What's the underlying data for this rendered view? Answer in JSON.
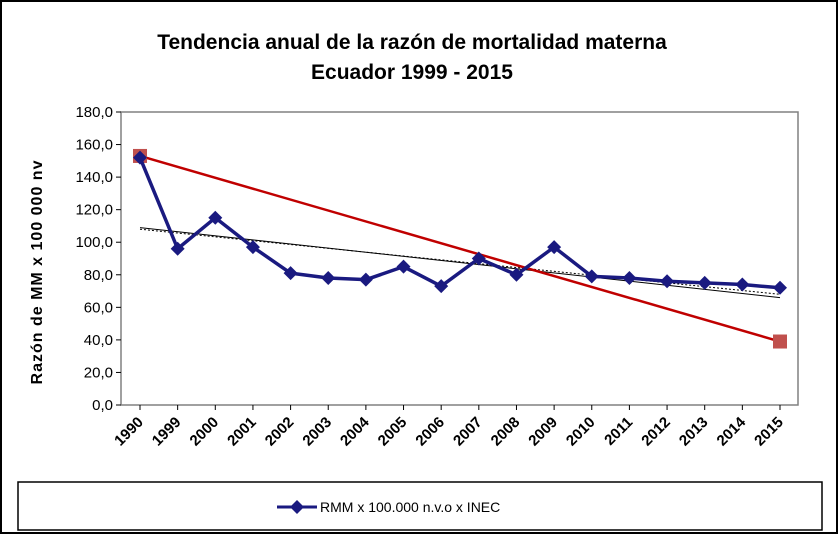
{
  "chart_data": {
    "type": "line",
    "title": "Tendencia anual de la razón de mortalidad materna",
    "subtitle": "Ecuador 1999 - 2015",
    "ylabel": "Razón de MM x 100 000 nv",
    "xlabel": "",
    "ylim": [
      0,
      180
    ],
    "yticks": [
      "0,0",
      "20,0",
      "40,0",
      "60,0",
      "80,0",
      "100,0",
      "120,0",
      "140,0",
      "160,0",
      "180,0"
    ],
    "categories": [
      "1990",
      "1999",
      "2000",
      "2001",
      "2002",
      "2003",
      "2004",
      "2005",
      "2006",
      "2007",
      "2008",
      "2009",
      "2010",
      "2011",
      "2012",
      "2013",
      "2014",
      "2015"
    ],
    "grid": false,
    "legend_position": "bottom",
    "series": [
      {
        "name": "RMM x 100.000 n.v.o x INEC",
        "color": "#1a1a80",
        "marker": "diamond",
        "values": [
          152.0,
          96.0,
          115.0,
          97.0,
          81.0,
          78.0,
          77.0,
          85.0,
          73.0,
          90.0,
          80.0,
          97.0,
          79.0,
          78.0,
          76.0,
          75.0,
          74.0,
          72.0
        ]
      }
    ],
    "red_line": {
      "color": "#c00000",
      "marker_color": "#c0504d",
      "start": {
        "category": "1990",
        "value": 153.0
      },
      "end": {
        "category": "2015",
        "value": 39.0
      }
    },
    "trendlines": [
      {
        "color": "#000000",
        "dash": "solid",
        "start": {
          "category": "1990",
          "value": 109.0
        },
        "end": {
          "category": "2015",
          "value": 66.0
        }
      },
      {
        "color": "#000000",
        "dash": "dotted",
        "start": {
          "category": "1990",
          "value": 108.0
        },
        "end": {
          "category": "2015",
          "value": 68.0
        }
      }
    ]
  },
  "legend": {
    "label": "RMM x 100.000 n.v.o x INEC"
  }
}
